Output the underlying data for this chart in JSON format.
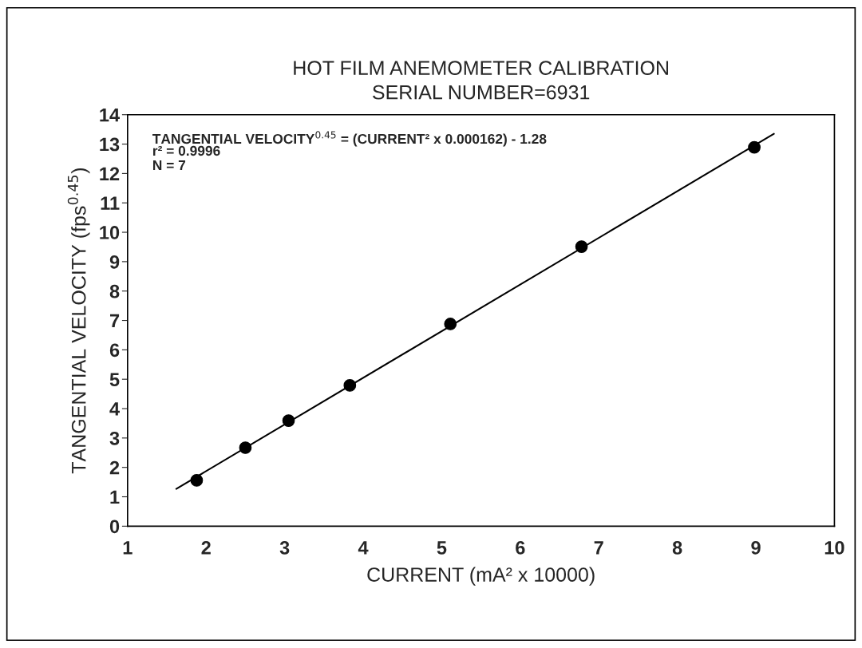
{
  "chart_data": {
    "type": "scatter",
    "title": "HOT FILM ANEMOMETER CALIBRATION\nSERIAL NUMBER=6931",
    "xlabel": "CURRENT (mA² x 10000)",
    "ylabel": "TANGENTIAL VELOCITY (fps$^{0.45}$)",
    "annotations": [
      "TANGENTIAL VELOCITY$^{0.45}$ = (CURRENT² x 0.000162) - 1.28",
      "r² = 0.9996",
      "N = 7"
    ],
    "series": [
      {
        "color": "#000000",
        "marker": "circle",
        "x": [
          1.88,
          2.5,
          3.05,
          3.83,
          5.11,
          6.78,
          8.98
        ],
        "values": [
          1.56,
          2.67,
          3.59,
          4.79,
          6.88,
          9.51,
          12.89
        ]
      },
      {
        "type": "line",
        "color": "#000000",
        "marker": "none",
        "line_style": "solid",
        "x": [
          1.62,
          9.23
        ],
        "values": [
          1.27,
          13.35
        ]
      }
    ],
    "xlim": [
      1,
      10
    ],
    "xticks": [
      1,
      2,
      3,
      4,
      5,
      6,
      7,
      8,
      9,
      10
    ],
    "ylim": [
      0,
      14
    ],
    "yticks": [
      0,
      1,
      2,
      3,
      4,
      5,
      6,
      7,
      8,
      9,
      10,
      11,
      12,
      13,
      14
    ],
    "grid": false,
    "legend": false
  }
}
